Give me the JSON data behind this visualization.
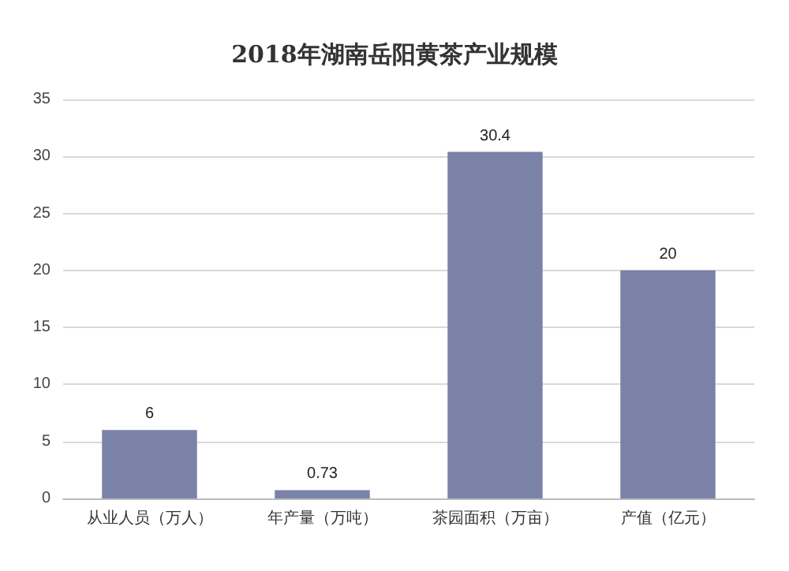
{
  "chart_data": {
    "type": "bar",
    "title": "2018年湖南岳阳黄茶产业规模",
    "categories": [
      "从业人员（万人）",
      "年产量（万吨）",
      "茶园面积（万亩）",
      "产值（亿元）"
    ],
    "values": [
      6,
      0.73,
      30.4,
      20
    ],
    "color": "#7a82a8",
    "ylim": [
      0,
      35
    ],
    "yticks": [
      0,
      5,
      10,
      15,
      20,
      25,
      30,
      35
    ],
    "grid": "y",
    "data_labels": true
  }
}
